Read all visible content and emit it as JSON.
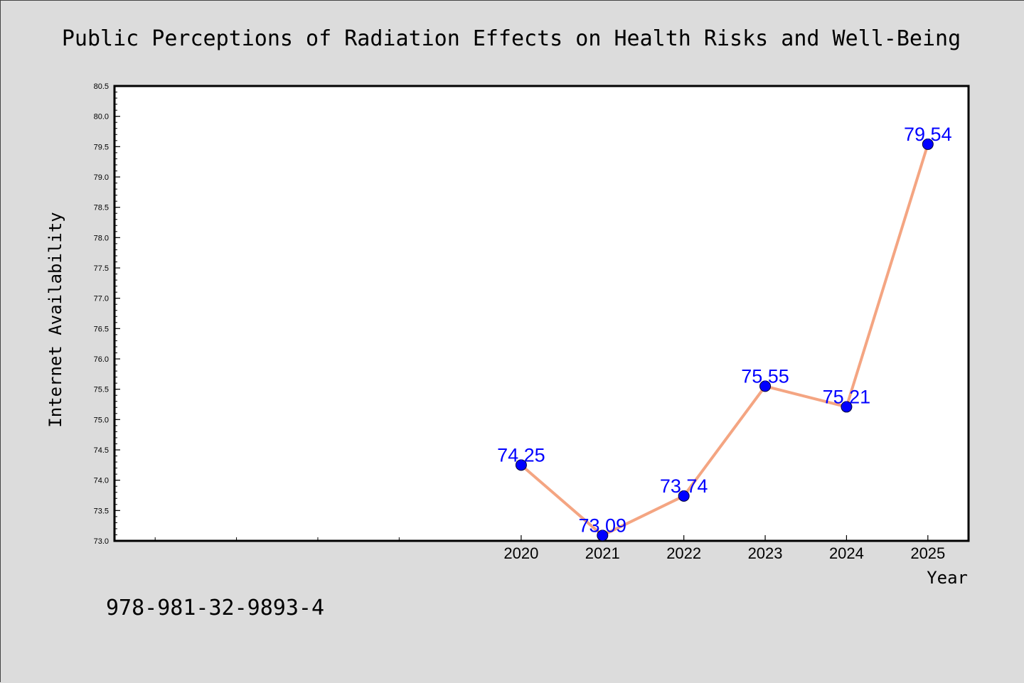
{
  "colors": {
    "background": "#dcdcdc",
    "plot_background": "#ffffff",
    "axis": "#000000",
    "line": "#f4a582",
    "marker": "#0000ff",
    "data_label": "#0000ff",
    "text": "#000000"
  },
  "footer": {
    "isbn": "978-981-32-9893-4"
  },
  "chart_data": {
    "type": "line",
    "title": "Public Perceptions of Radiation Effects on Health Risks and Well-Being",
    "xlabel": "Year",
    "ylabel": "Internet Availability",
    "xlim": [
      2015.0,
      2025.5
    ],
    "ylim": [
      73.0,
      80.5
    ],
    "y_ticks": [
      "73.0",
      "73.5",
      "74.0",
      "74.5",
      "75.0",
      "75.5",
      "76.0",
      "76.5",
      "77.0",
      "77.5",
      "78.0",
      "78.5",
      "79.0",
      "79.5",
      "80.0",
      "80.5"
    ],
    "x_tick_labels": [
      "2020",
      "2021",
      "2022",
      "2023",
      "2024",
      "2025"
    ],
    "x_unlabeled_ticks": [
      2015.5,
      2016.5,
      2017.5,
      2018.5
    ],
    "grid": false,
    "legend": "none",
    "series": [
      {
        "x": [
          2020,
          2021,
          2022,
          2023,
          2024,
          2025
        ],
        "values": [
          74.25,
          73.09,
          73.74,
          75.55,
          75.21,
          79.54
        ],
        "labels": [
          "74.25",
          "73.09",
          "73.74",
          "75.55",
          "75.21",
          "79.54"
        ]
      }
    ]
  }
}
